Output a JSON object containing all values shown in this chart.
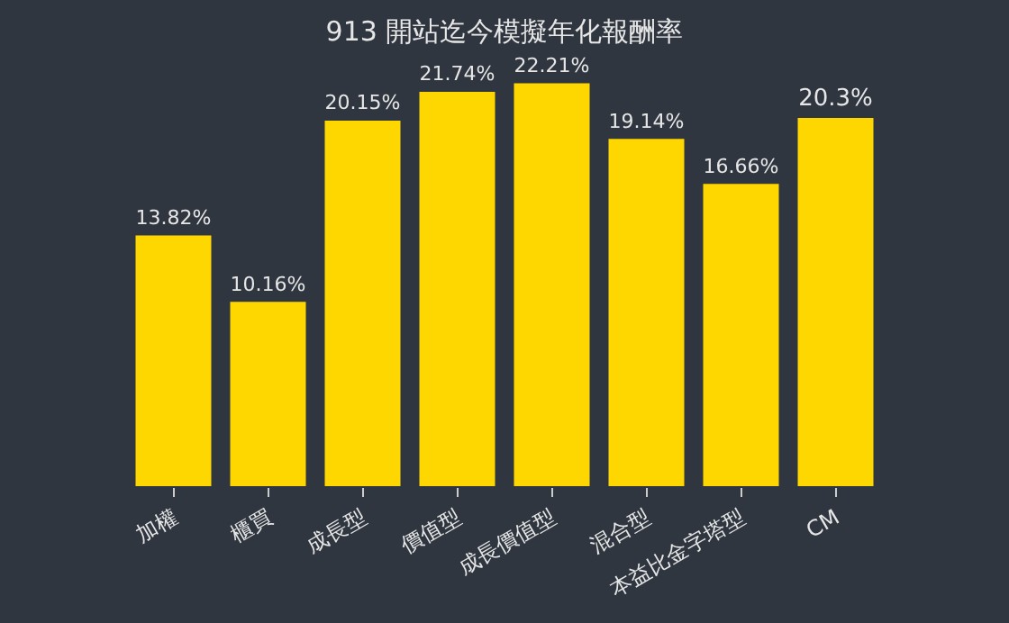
{
  "chart_data": {
    "type": "bar",
    "title": "913 開站迄今模擬年化報酬率",
    "categories": [
      "加權",
      "櫃買",
      "成長型",
      "價值型",
      "成長價值型",
      "混合型",
      "本益比金字塔型",
      "CM"
    ],
    "values": [
      13.82,
      10.16,
      20.15,
      21.74,
      22.21,
      19.14,
      16.66,
      20.3
    ],
    "value_labels": [
      "13.82%",
      "10.16%",
      "20.15%",
      "21.74%",
      "22.21%",
      "19.14%",
      "16.66%",
      "20.3%"
    ],
    "color": "#ffd700",
    "grid": false,
    "legend": false
  }
}
